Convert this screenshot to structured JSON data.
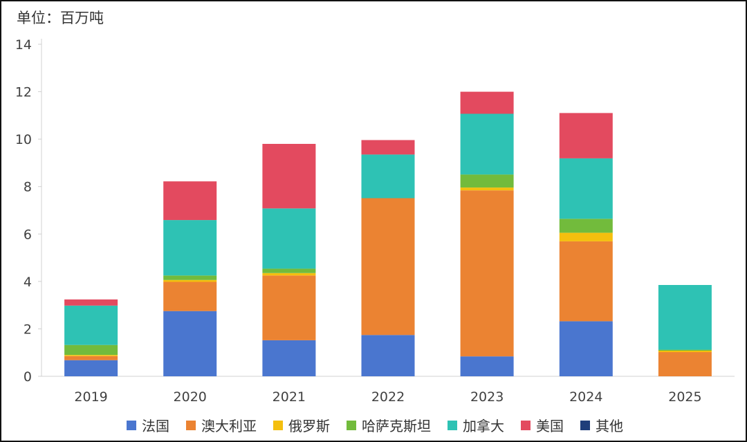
{
  "unit_label": "单位：百万吨",
  "colors": {
    "france": "#4a76cf",
    "australia": "#eb8332",
    "russia": "#f4bf0e",
    "kazakhstan": "#72bb3c",
    "canada": "#2ec2b4",
    "usa": "#e34a5f",
    "other": "#1f3e7a"
  },
  "chart_data": {
    "type": "bar",
    "stacked": true,
    "title": "",
    "xlabel": "",
    "ylabel": "单位：百万吨",
    "ylim": [
      0,
      14
    ],
    "yticks": [
      0,
      2,
      4,
      6,
      8,
      10,
      12,
      14
    ],
    "grid": false,
    "legend_position": "bottom",
    "categories": [
      "2019",
      "2020",
      "2021",
      "2022",
      "2023",
      "2024",
      "2025"
    ],
    "series": [
      {
        "name": "法国",
        "color_key": "france",
        "values": [
          0.68,
          2.75,
          1.52,
          1.74,
          0.84,
          2.32,
          0.0
        ]
      },
      {
        "name": "澳大利亚",
        "color_key": "australia",
        "values": [
          0.17,
          1.23,
          2.73,
          5.77,
          7.0,
          3.37,
          1.02
        ]
      },
      {
        "name": "俄罗斯",
        "color_key": "russia",
        "values": [
          0.05,
          0.08,
          0.1,
          0.0,
          0.12,
          0.36,
          0.06
        ]
      },
      {
        "name": "哈萨克斯坦",
        "color_key": "kazakhstan",
        "values": [
          0.42,
          0.19,
          0.19,
          0.0,
          0.55,
          0.59,
          0.04
        ]
      },
      {
        "name": "加拿大",
        "color_key": "canada",
        "values": [
          1.66,
          2.34,
          2.54,
          1.84,
          2.56,
          2.55,
          2.73
        ]
      },
      {
        "name": "美国",
        "color_key": "usa",
        "values": [
          0.26,
          1.63,
          2.72,
          0.61,
          0.93,
          1.91,
          0.0
        ]
      },
      {
        "name": "其他",
        "color_key": "other",
        "values": [
          0,
          0,
          0,
          0,
          0,
          0,
          0
        ]
      }
    ]
  }
}
